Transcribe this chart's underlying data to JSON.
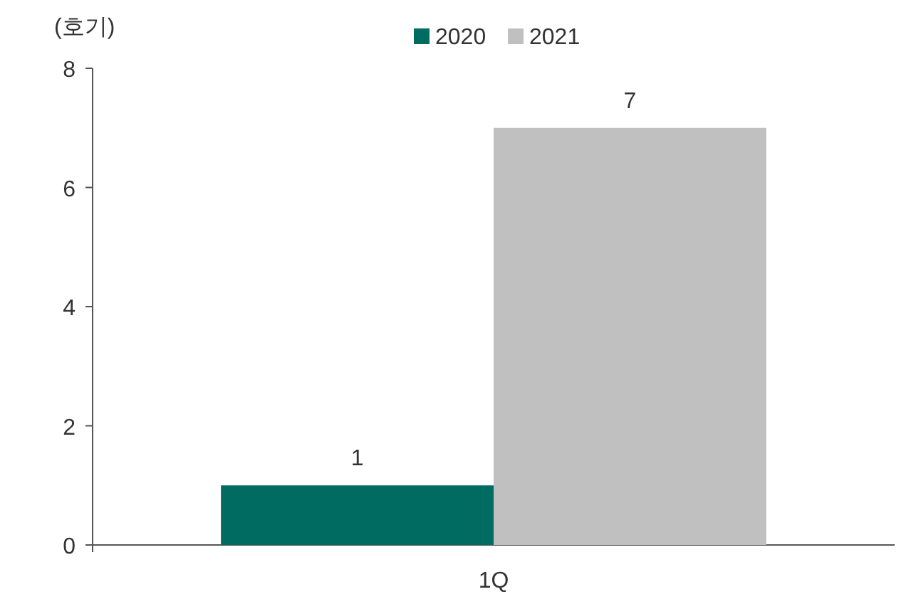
{
  "chart_data": {
    "type": "bar",
    "ylabel": "(호기)",
    "categories": [
      "1Q"
    ],
    "series": [
      {
        "name": "2020",
        "color": "#006b60",
        "values": [
          1
        ]
      },
      {
        "name": "2021",
        "color": "#c0c0c0",
        "values": [
          7
        ]
      }
    ],
    "ylim": [
      0,
      8
    ],
    "yticks": [
      0,
      2,
      4,
      6,
      8
    ],
    "data_labels": true,
    "legend": "top"
  }
}
